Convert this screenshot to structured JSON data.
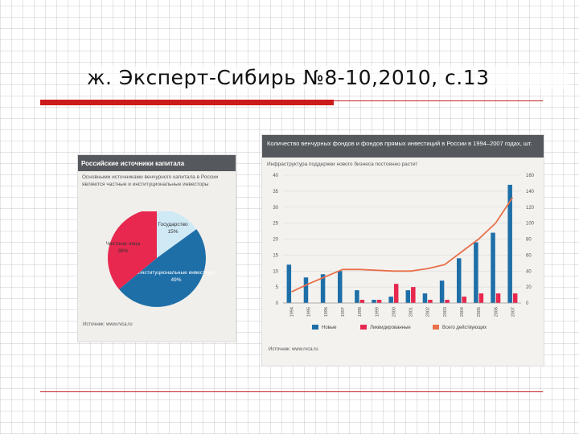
{
  "slide": {
    "title": "ж. Эксперт-Сибирь №8-10,2010, с.13"
  },
  "chart_data": [
    {
      "type": "pie",
      "title": "Российские источники капитала",
      "subtitle": "Основными источниками венчурного капитала в России являются частные и институциональные инвесторы",
      "slices": [
        {
          "label": "Государство",
          "value": 15,
          "display": "15%",
          "color": "#cfe9f5"
        },
        {
          "label": "Институциональные инвесторы",
          "value": 49,
          "display": "49%",
          "color": "#1e6fa8"
        },
        {
          "label": "Частные лица",
          "value": 36,
          "display": "36%",
          "color": "#e8284f"
        }
      ],
      "source": "Источник: www.rvca.ru"
    },
    {
      "type": "bar",
      "title": "Количество венчурных фондов и фондов прямых инвестиций в России в 1994–2007 годах, шт.",
      "subtitle": "Инфраструктура поддержки нового бизнеса постоянно растет",
      "categories": [
        "1994",
        "1995",
        "1996",
        "1997",
        "1998",
        "1999",
        "2000",
        "2001",
        "2002",
        "2003",
        "2004",
        "2005",
        "2006",
        "2007"
      ],
      "ylim_left": [
        0,
        40
      ],
      "ylim_right": [
        0,
        160
      ],
      "yticks_left": [
        0,
        5,
        10,
        15,
        20,
        25,
        30,
        35,
        40
      ],
      "yticks_right": [
        0,
        20,
        40,
        60,
        80,
        100,
        120,
        140,
        160
      ],
      "series": [
        {
          "name": "Новые",
          "type": "bar",
          "axis": "left",
          "color": "#1e6fa8",
          "values": [
            12,
            8,
            9,
            10,
            4,
            1,
            2,
            4,
            3,
            7,
            14,
            19,
            22,
            37
          ]
        },
        {
          "name": "Ликвидированные",
          "type": "bar",
          "axis": "left",
          "color": "#e8284f",
          "values": [
            0,
            0,
            0,
            0,
            1,
            1,
            6,
            5,
            1,
            1,
            2,
            3,
            3,
            3
          ]
        },
        {
          "name": "Всего действующих",
          "type": "line",
          "axis": "right",
          "color": "#e8704a",
          "values": [
            14,
            24,
            33,
            42,
            42,
            41,
            40,
            40,
            43,
            48,
            64,
            80,
            100,
            132
          ]
        }
      ],
      "source": "Источник: www.rvca.ru"
    }
  ]
}
